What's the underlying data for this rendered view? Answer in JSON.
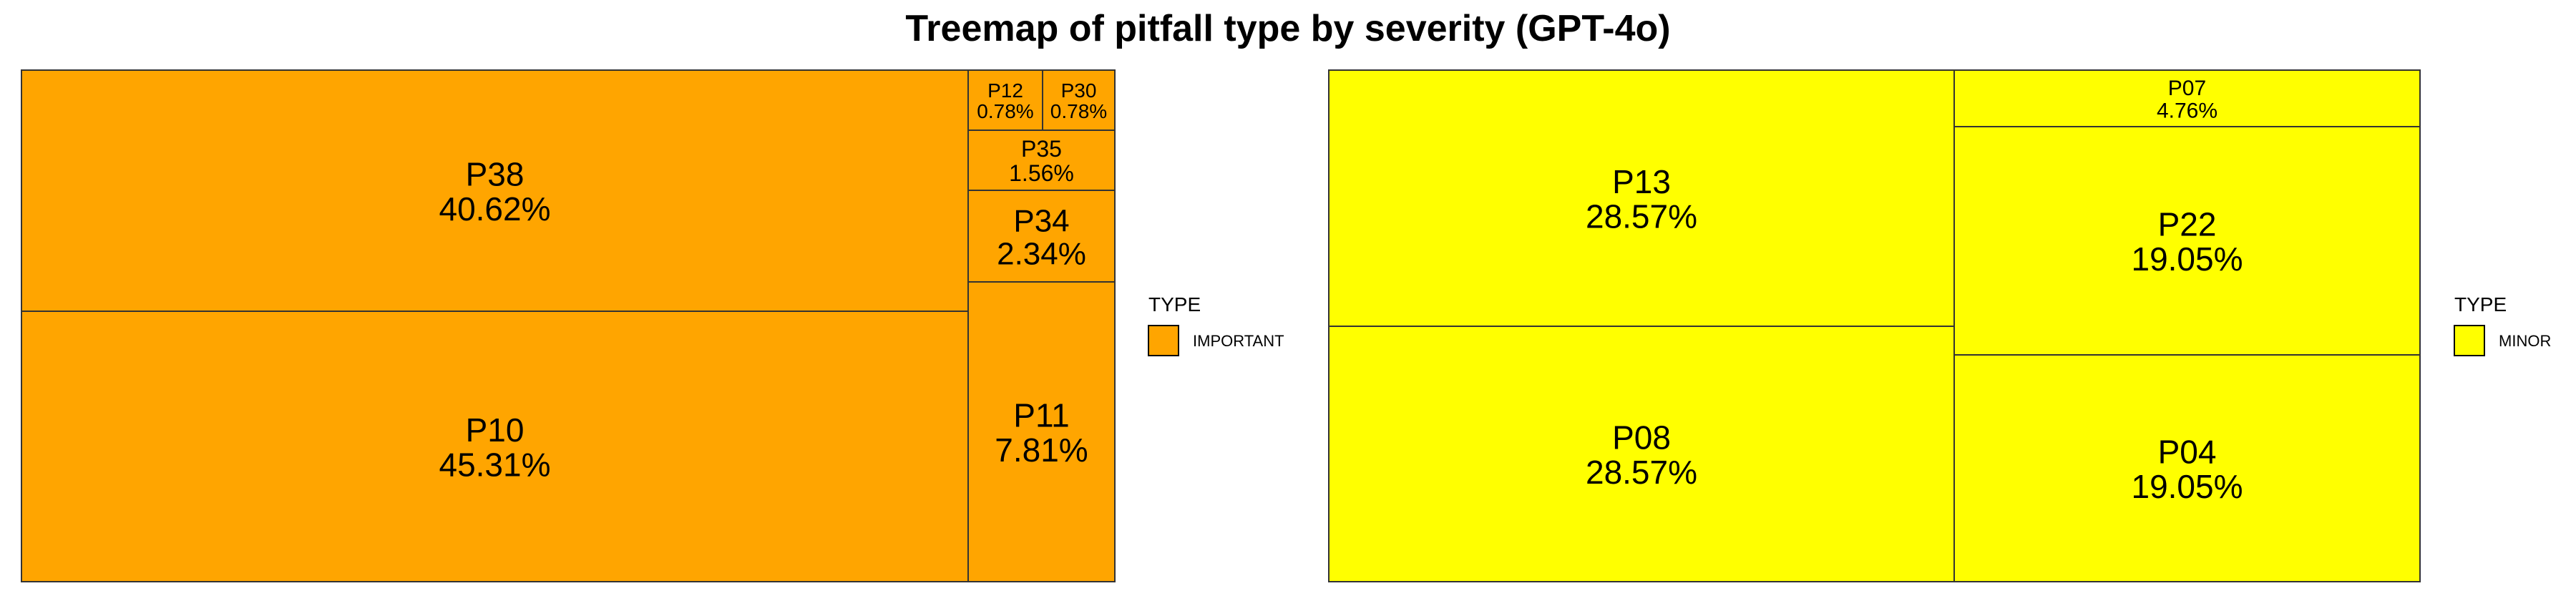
{
  "title": "Treemap of pitfall type by severity (GPT-4o)",
  "chart_data": [
    {
      "type": "treemap",
      "legend_title": "TYPE",
      "legend_label": "IMPORTANT",
      "color": "#FFA500",
      "items": [
        {
          "name": "P38",
          "label": "40.62%",
          "value": 40.62
        },
        {
          "name": "P10",
          "label": "45.31%",
          "value": 45.31
        },
        {
          "name": "P12",
          "label": "0.78%",
          "value": 0.78
        },
        {
          "name": "P30",
          "label": "0.78%",
          "value": 0.78
        },
        {
          "name": "P35",
          "label": "1.56%",
          "value": 1.56
        },
        {
          "name": "P34",
          "label": "2.34%",
          "value": 2.34
        },
        {
          "name": "P11",
          "label": "7.81%",
          "value": 7.81
        }
      ]
    },
    {
      "type": "treemap",
      "legend_title": "TYPE",
      "legend_label": "MINOR",
      "color": "#FFFF00",
      "items": [
        {
          "name": "P13",
          "label": "28.57%",
          "value": 28.57
        },
        {
          "name": "P08",
          "label": "28.57%",
          "value": 28.57
        },
        {
          "name": "P07",
          "label": "4.76%",
          "value": 4.76
        },
        {
          "name": "P22",
          "label": "19.05%",
          "value": 19.05
        },
        {
          "name": "P04",
          "label": "19.05%",
          "value": 19.05
        }
      ]
    }
  ]
}
